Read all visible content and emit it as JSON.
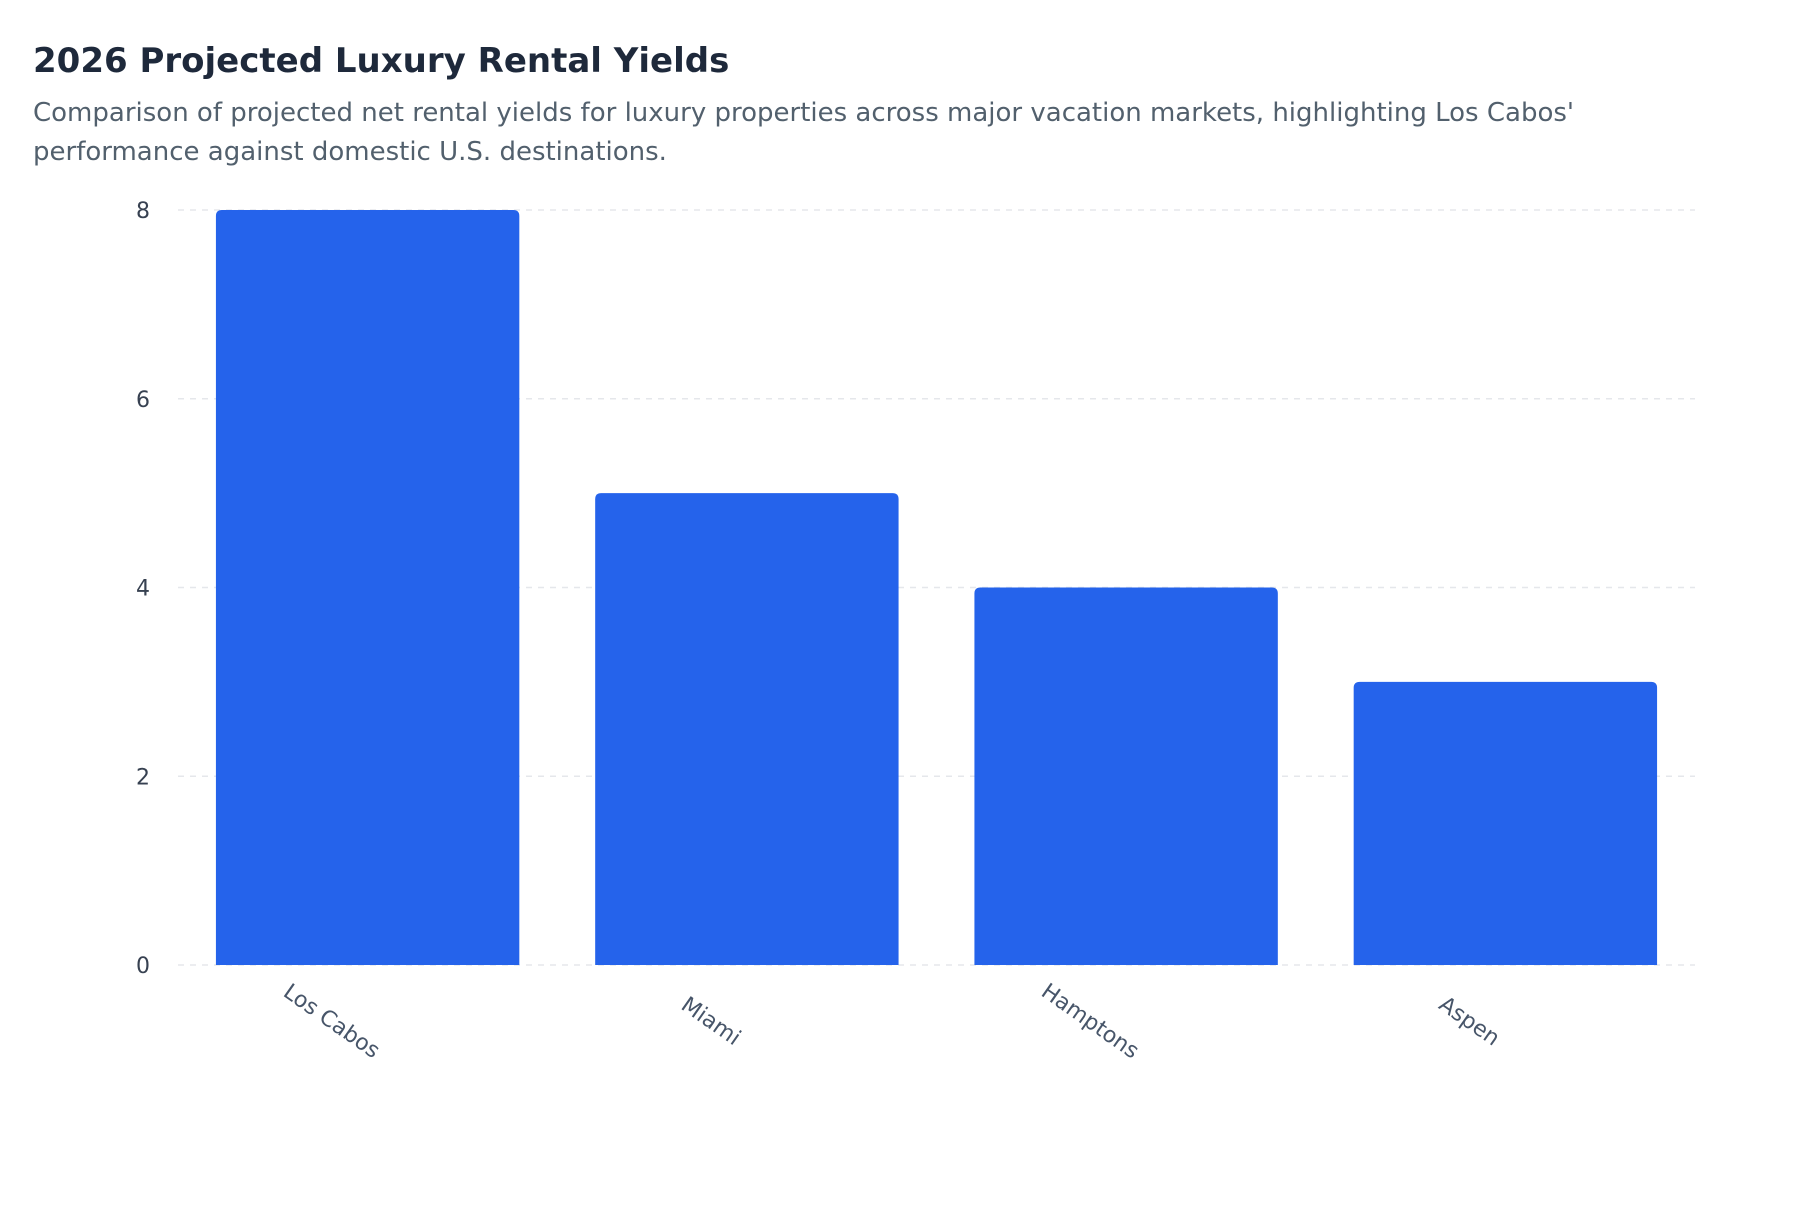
{
  "title": "2026 Projected Luxury Rental Yields",
  "subtitle": "Comparison of projected net rental yields for luxury properties across major vacation markets, highlighting Los Cabos' performance against domestic U.S. destinations.",
  "colors": {
    "bar": "#2563eb",
    "grid": "#e5e7eb",
    "tick_text": "#374151",
    "category_text": "#475569"
  },
  "chart_data": {
    "type": "bar",
    "categories": [
      "Los Cabos",
      "Miami",
      "Hamptons",
      "Aspen"
    ],
    "values": [
      8,
      5,
      4,
      3
    ],
    "xlabel": "",
    "ylabel": "",
    "ylim": [
      0,
      8
    ],
    "yticks": [
      0,
      2,
      4,
      6,
      8
    ],
    "grid": true,
    "legend": false
  }
}
